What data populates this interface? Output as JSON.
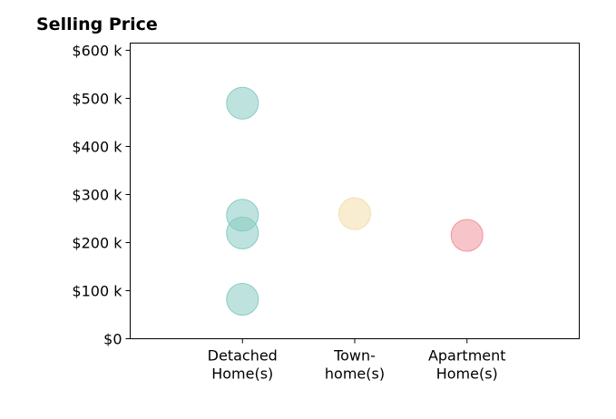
{
  "chart_data": {
    "type": "scatter",
    "title": "Selling Price",
    "xlabel": "",
    "ylabel": "",
    "categories": [
      [
        "Detached",
        "Home(s)"
      ],
      [
        "Town-",
        "home(s)"
      ],
      [
        "Apartment",
        "Home(s)"
      ]
    ],
    "ylim": [
      0,
      615000
    ],
    "yticks": [
      0,
      100000,
      200000,
      300000,
      400000,
      500000,
      600000
    ],
    "ytick_labels": [
      "$0",
      "$100 k",
      "$200 k",
      "$300 k",
      "$400 k",
      "$500 k",
      "$600 k"
    ],
    "grid": false,
    "points": [
      {
        "category": 0,
        "y": 490000,
        "color": "#88ccc3"
      },
      {
        "category": 0,
        "y": 257000,
        "color": "#88ccc3"
      },
      {
        "category": 0,
        "y": 220000,
        "color": "#88ccc3"
      },
      {
        "category": 0,
        "y": 82000,
        "color": "#88ccc3"
      },
      {
        "category": 1,
        "y": 260000,
        "color": "#f2dfab"
      },
      {
        "category": 2,
        "y": 215000,
        "color": "#f0949c"
      }
    ]
  }
}
